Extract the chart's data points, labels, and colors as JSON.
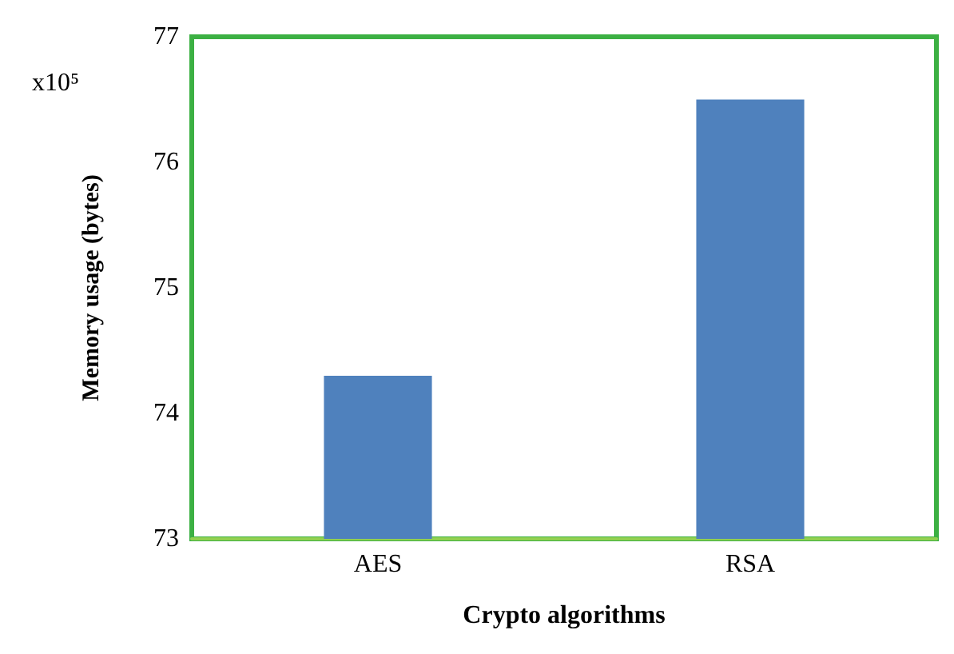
{
  "chart_data": {
    "type": "bar",
    "xlabel": "Crypto algorithms",
    "ylabel": "Memory usage (bytes)",
    "annotations": [
      "x10⁵"
    ],
    "categories": [
      "AES",
      "RSA"
    ],
    "series": [
      {
        "color": "#4f81bd",
        "values": [
          74.3,
          76.5
        ]
      }
    ],
    "ylim": [
      73,
      77
    ],
    "yticks": [
      73,
      74,
      75,
      76,
      77
    ],
    "grid": false
  }
}
